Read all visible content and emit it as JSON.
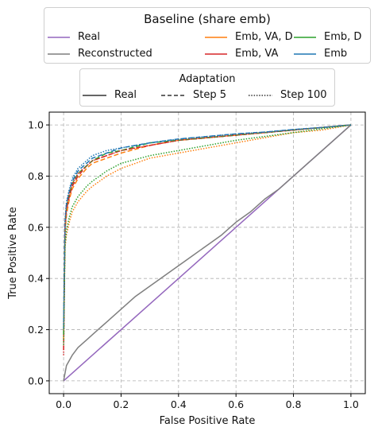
{
  "chart_data": {
    "type": "line",
    "title": "",
    "xlabel": "False Positive Rate",
    "ylabel": "True Positive Rate",
    "xlim": [
      -0.05,
      1.05
    ],
    "ylim": [
      -0.05,
      1.05
    ],
    "xticks": [
      0.0,
      0.2,
      0.4,
      0.6,
      0.8,
      1.0
    ],
    "yticks": [
      0.0,
      0.2,
      0.4,
      0.6,
      0.8,
      1.0
    ],
    "tick_labels": [
      "0.0",
      "0.2",
      "0.4",
      "0.6",
      "0.8",
      "1.0"
    ],
    "grid": true,
    "legends": [
      {
        "title": "Baseline (share emb)",
        "placement": "top",
        "entries": [
          {
            "name": "Real",
            "color": "#9467bd",
            "style": "solid"
          },
          {
            "name": "Reconstructed",
            "color": "#7f7f7f",
            "style": "solid"
          },
          {
            "name": "Emb, VA, D",
            "color": "#ff7f0e",
            "style": "solid"
          },
          {
            "name": "Emb, VA",
            "color": "#d62728",
            "style": "solid"
          },
          {
            "name": "Emb, D",
            "color": "#2ca02c",
            "style": "solid"
          },
          {
            "name": "Emb",
            "color": "#1f77b4",
            "style": "solid"
          }
        ]
      },
      {
        "title": "Adaptation",
        "placement": "top",
        "entries": [
          {
            "name": "Real",
            "color": "#333333",
            "style": "solid"
          },
          {
            "name": "Step 5",
            "color": "#333333",
            "style": "dashed"
          },
          {
            "name": "Step 100",
            "color": "#333333",
            "style": "dotted"
          }
        ]
      }
    ],
    "series": [
      {
        "name": "Real",
        "color": "#9467bd",
        "style": "solid",
        "x": [
          0,
          1
        ],
        "y": [
          0,
          1
        ]
      },
      {
        "name": "Reconstructed",
        "color": "#7f7f7f",
        "style": "solid",
        "x": [
          0,
          0.01,
          0.03,
          0.05,
          0.08,
          0.1,
          0.15,
          0.2,
          0.25,
          0.3,
          0.35,
          0.4,
          0.45,
          0.5,
          0.55,
          0.6,
          0.65,
          0.7,
          0.75,
          0.8,
          0.85,
          0.9,
          0.95,
          1.0
        ],
        "y": [
          0,
          0.06,
          0.1,
          0.13,
          0.16,
          0.18,
          0.23,
          0.28,
          0.33,
          0.37,
          0.41,
          0.45,
          0.49,
          0.53,
          0.57,
          0.62,
          0.66,
          0.71,
          0.75,
          0.8,
          0.85,
          0.9,
          0.95,
          1.0
        ]
      },
      {
        "name": "Emb, VA, D - Step 5",
        "color": "#ff7f0e",
        "style": "dashed",
        "x": [
          0,
          0.005,
          0.01,
          0.02,
          0.03,
          0.05,
          0.08,
          0.1,
          0.15,
          0.2,
          0.3,
          0.4,
          0.5,
          0.6,
          0.7,
          0.8,
          0.9,
          1.0
        ],
        "y": [
          0.16,
          0.58,
          0.65,
          0.71,
          0.75,
          0.79,
          0.83,
          0.85,
          0.87,
          0.89,
          0.92,
          0.94,
          0.95,
          0.96,
          0.97,
          0.98,
          0.99,
          1.0
        ]
      },
      {
        "name": "Emb, VA - Step 5",
        "color": "#d62728",
        "style": "dashed",
        "x": [
          0,
          0.005,
          0.01,
          0.02,
          0.03,
          0.05,
          0.08,
          0.1,
          0.15,
          0.2,
          0.3,
          0.4,
          0.5,
          0.6,
          0.7,
          0.8,
          0.9,
          1.0
        ],
        "y": [
          0.12,
          0.6,
          0.67,
          0.72,
          0.76,
          0.8,
          0.84,
          0.86,
          0.88,
          0.9,
          0.92,
          0.94,
          0.95,
          0.96,
          0.97,
          0.98,
          0.99,
          1.0
        ]
      },
      {
        "name": "Emb, D - Step 5",
        "color": "#2ca02c",
        "style": "dashed",
        "x": [
          0,
          0.005,
          0.01,
          0.02,
          0.03,
          0.05,
          0.08,
          0.1,
          0.15,
          0.2,
          0.3,
          0.4,
          0.5,
          0.6,
          0.7,
          0.8,
          0.9,
          1.0
        ],
        "y": [
          0.18,
          0.61,
          0.68,
          0.73,
          0.77,
          0.81,
          0.84,
          0.86,
          0.89,
          0.9,
          0.93,
          0.94,
          0.95,
          0.96,
          0.97,
          0.98,
          0.99,
          1.0
        ]
      },
      {
        "name": "Emb - Step 5",
        "color": "#1f77b4",
        "style": "dashed",
        "x": [
          0,
          0.005,
          0.01,
          0.02,
          0.03,
          0.05,
          0.08,
          0.1,
          0.15,
          0.2,
          0.3,
          0.4,
          0.5,
          0.6,
          0.7,
          0.8,
          0.9,
          1.0
        ],
        "y": [
          0.2,
          0.62,
          0.69,
          0.74,
          0.78,
          0.82,
          0.85,
          0.87,
          0.89,
          0.91,
          0.93,
          0.945,
          0.955,
          0.965,
          0.972,
          0.982,
          0.99,
          1.0
        ]
      },
      {
        "name": "Emb, VA, D - Step 100",
        "color": "#ff7f0e",
        "style": "dotted",
        "x": [
          0,
          0.005,
          0.01,
          0.02,
          0.03,
          0.05,
          0.08,
          0.1,
          0.15,
          0.2,
          0.3,
          0.4,
          0.5,
          0.6,
          0.7,
          0.8,
          0.9,
          1.0
        ],
        "y": [
          0.22,
          0.52,
          0.57,
          0.62,
          0.66,
          0.7,
          0.74,
          0.76,
          0.8,
          0.83,
          0.87,
          0.89,
          0.91,
          0.93,
          0.95,
          0.97,
          0.98,
          1.0
        ]
      },
      {
        "name": "Emb, VA - Step 100",
        "color": "#d62728",
        "style": "dotted",
        "x": [
          0,
          0.005,
          0.01,
          0.02,
          0.03,
          0.05,
          0.08,
          0.1,
          0.15,
          0.2,
          0.3,
          0.4,
          0.5,
          0.6,
          0.7,
          0.8,
          0.9,
          1.0
        ],
        "y": [
          0.1,
          0.61,
          0.68,
          0.73,
          0.77,
          0.81,
          0.84,
          0.86,
          0.88,
          0.9,
          0.92,
          0.94,
          0.95,
          0.96,
          0.97,
          0.98,
          0.99,
          1.0
        ]
      },
      {
        "name": "Emb, D - Step 100",
        "color": "#2ca02c",
        "style": "dotted",
        "x": [
          0,
          0.005,
          0.01,
          0.02,
          0.03,
          0.05,
          0.08,
          0.1,
          0.15,
          0.2,
          0.3,
          0.4,
          0.5,
          0.6,
          0.7,
          0.8,
          0.9,
          1.0
        ],
        "y": [
          0.14,
          0.53,
          0.59,
          0.64,
          0.68,
          0.72,
          0.76,
          0.78,
          0.82,
          0.85,
          0.88,
          0.9,
          0.92,
          0.94,
          0.955,
          0.97,
          0.985,
          1.0
        ]
      },
      {
        "name": "Emb - Step 100",
        "color": "#1f77b4",
        "style": "dotted",
        "x": [
          0,
          0.005,
          0.01,
          0.02,
          0.03,
          0.05,
          0.08,
          0.1,
          0.15,
          0.2,
          0.3,
          0.4,
          0.5,
          0.6,
          0.7,
          0.8,
          0.9,
          1.0
        ],
        "y": [
          0.22,
          0.63,
          0.7,
          0.75,
          0.79,
          0.83,
          0.86,
          0.88,
          0.9,
          0.91,
          0.93,
          0.945,
          0.955,
          0.965,
          0.972,
          0.982,
          0.99,
          1.0
        ]
      }
    ]
  }
}
